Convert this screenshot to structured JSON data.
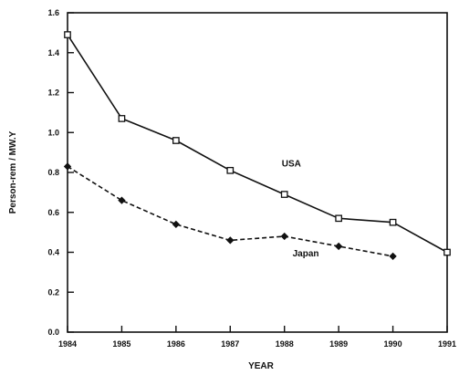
{
  "chart_data": {
    "type": "line",
    "title": "",
    "xlabel": "YEAR",
    "ylabel": "Person-rem / MW.Y",
    "xlim": [
      1984,
      1991
    ],
    "ylim": [
      0.0,
      1.6
    ],
    "x_ticks": [
      "1984",
      "1985",
      "1986",
      "1987",
      "1988",
      "1989",
      "1990",
      "1991"
    ],
    "y_ticks": [
      "0.0",
      "0.2",
      "0.4",
      "0.6",
      "0.8",
      "1.0",
      "1.2",
      "1.4",
      "1.6"
    ],
    "grid": false,
    "series": [
      {
        "name": "USA",
        "style": "solid",
        "marker": "open-square",
        "color": "#111111",
        "x": [
          1984,
          1985,
          1986,
          1987,
          1988,
          1989,
          1990,
          1991
        ],
        "y": [
          1.49,
          1.07,
          0.96,
          0.81,
          0.69,
          0.57,
          0.55,
          0.4
        ]
      },
      {
        "name": "Japan",
        "style": "dashed",
        "marker": "filled-diamond",
        "color": "#111111",
        "x": [
          1984,
          1985,
          1986,
          1987,
          1988,
          1989,
          1990
        ],
        "y": [
          0.83,
          0.66,
          0.54,
          0.46,
          0.48,
          0.43,
          0.38
        ]
      }
    ]
  }
}
